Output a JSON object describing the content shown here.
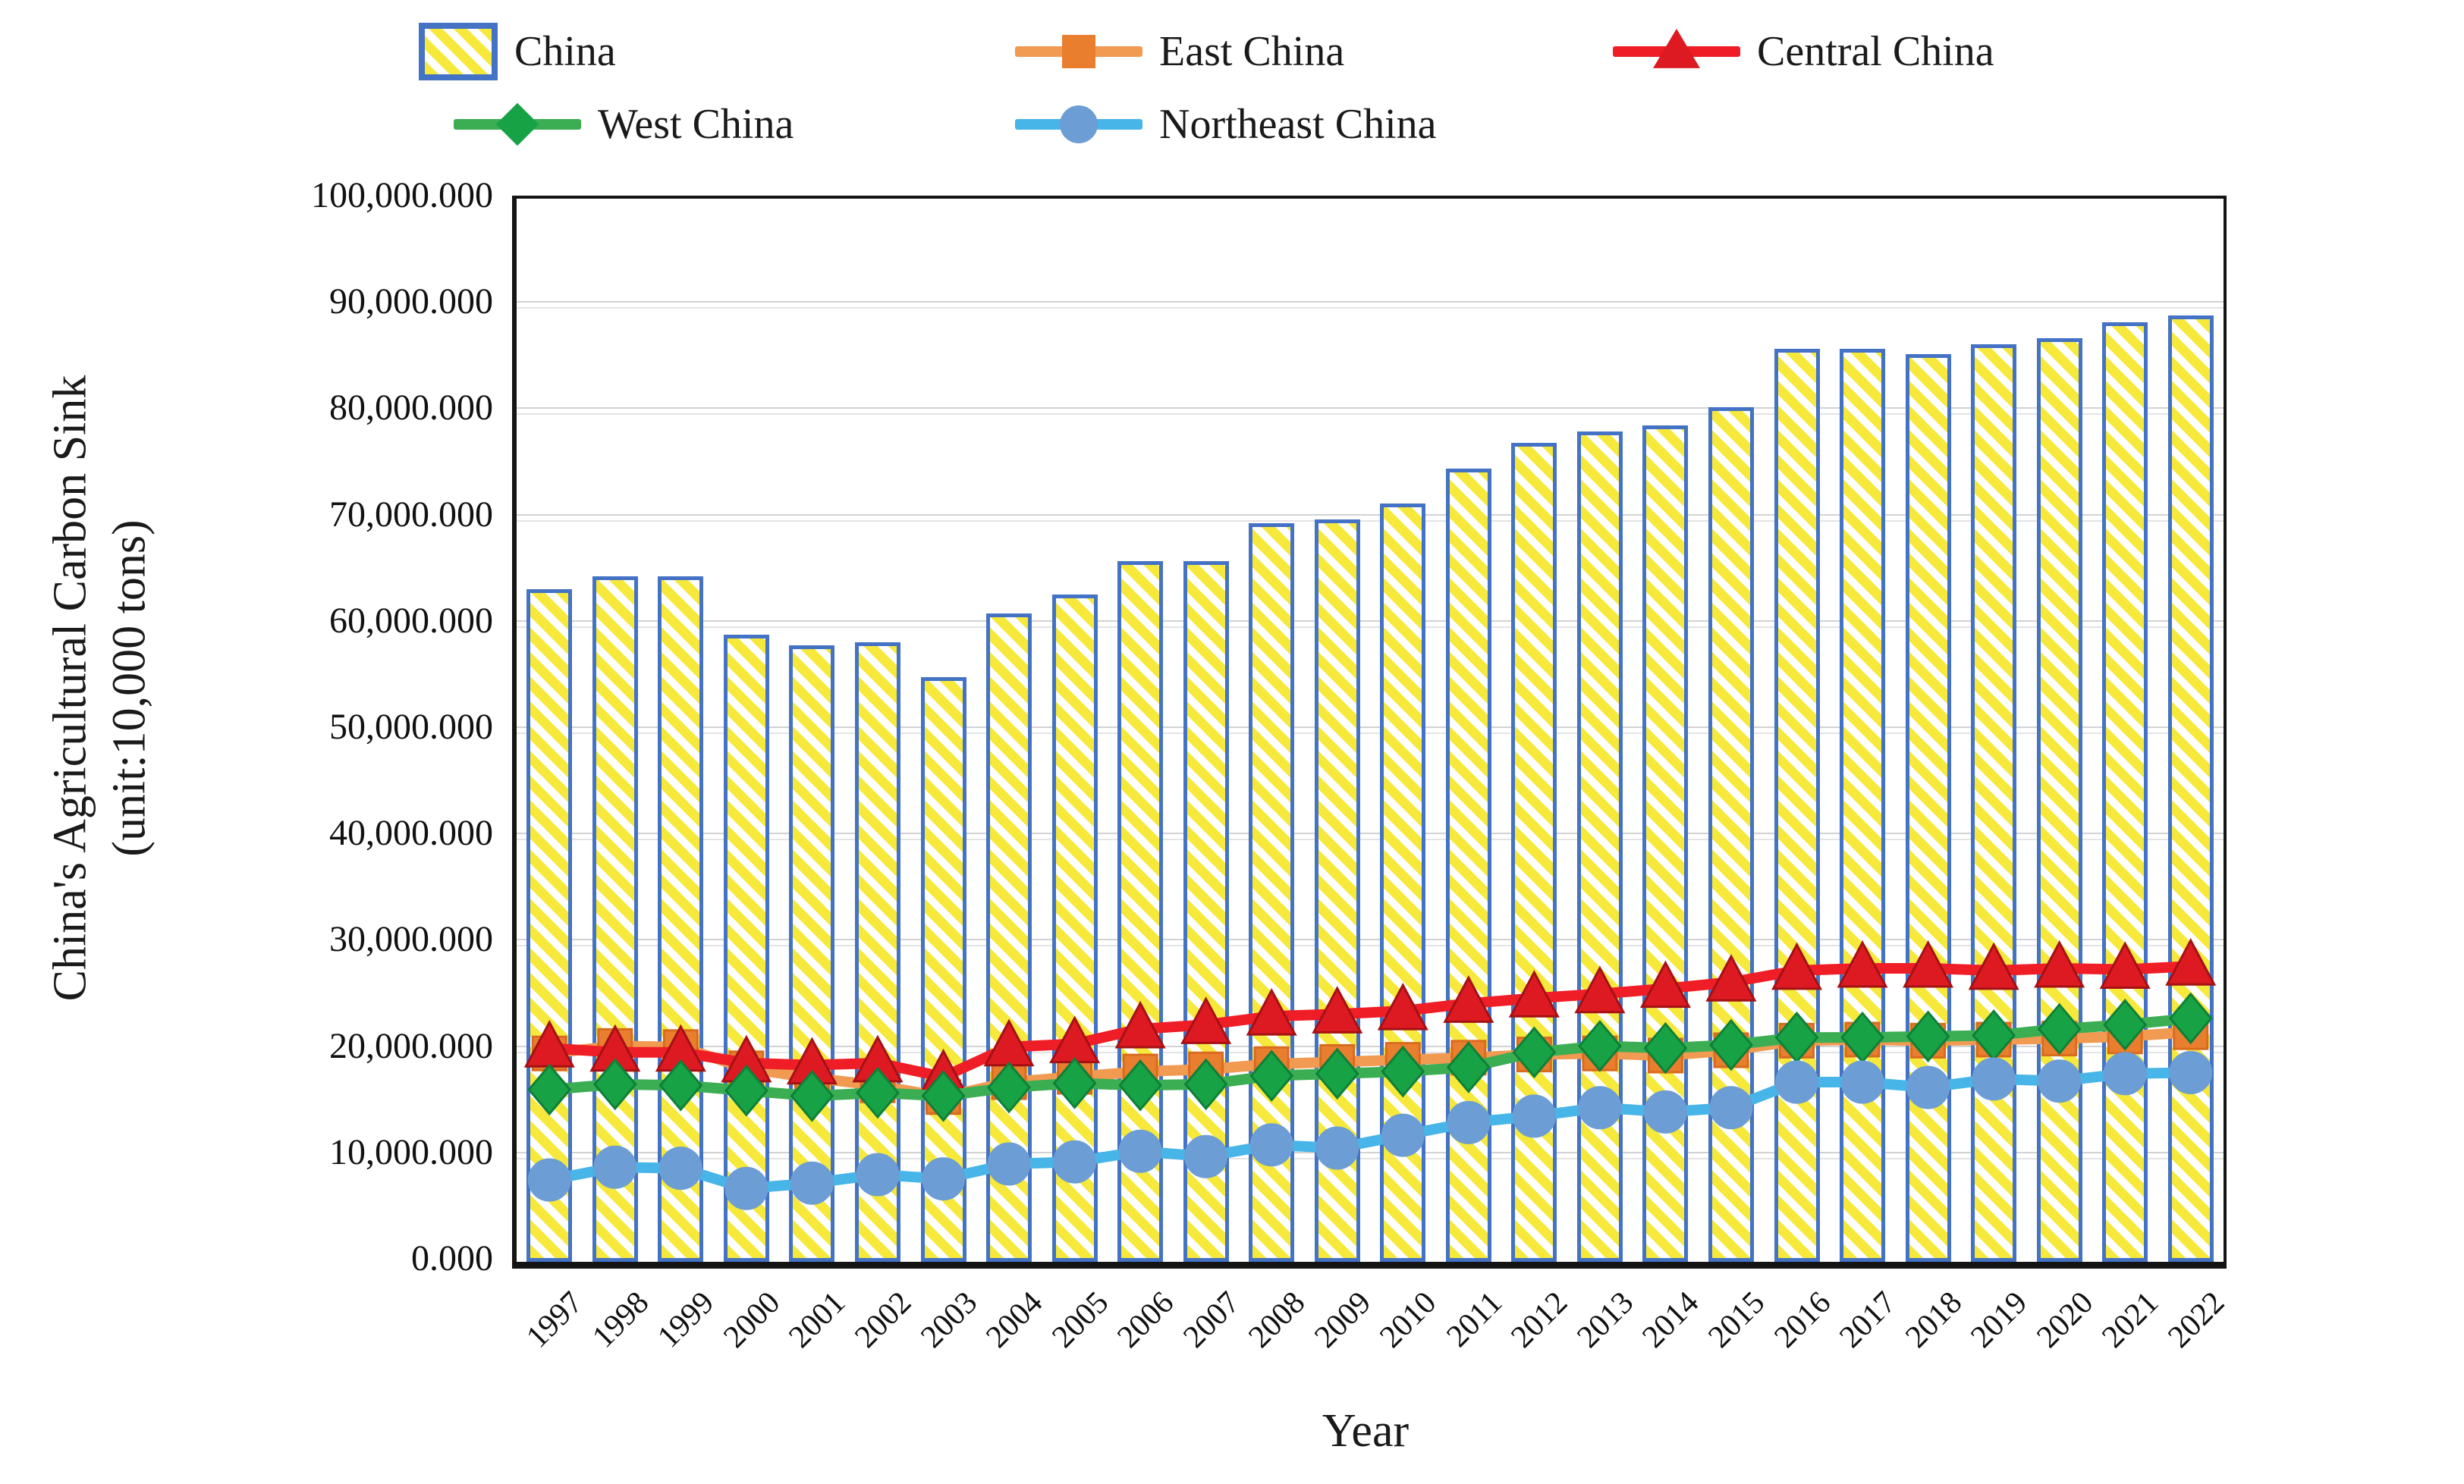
{
  "chart_data": {
    "type": "bar",
    "title": "",
    "xlabel": "Year",
    "ylabel_line1": "China's Agricultural Carbon Sink",
    "ylabel_line2": "(unit:10,000 tons)",
    "ylim": [
      0,
      100000
    ],
    "y_tick_step": 10000,
    "y_tick_labels": [
      "100,000.000",
      "90,000.000",
      "80,000.000",
      "70,000.000",
      "60,000.000",
      "50,000.000",
      "40,000.000",
      "30,000.000",
      "20,000.000",
      "10,000.000",
      "0.000"
    ],
    "grid": true,
    "legend_position": "top",
    "categories": [
      "1997",
      "1998",
      "1999",
      "2000",
      "2001",
      "2002",
      "2003",
      "2004",
      "2005",
      "2006",
      "2007",
      "2008",
      "2009",
      "2010",
      "2011",
      "2012",
      "2013",
      "2014",
      "2015",
      "2016",
      "2017",
      "2018",
      "2019",
      "2020",
      "2021",
      "2022"
    ],
    "series": [
      {
        "name": "China",
        "type": "bar",
        "border_color": "#4472C4",
        "hatch_color": "#F6E93B",
        "values": [
          63300,
          64500,
          64500,
          59000,
          58000,
          58300,
          55000,
          61000,
          62800,
          65900,
          65900,
          69500,
          69800,
          71300,
          74600,
          77000,
          78100,
          78700,
          80400,
          85900,
          85900,
          85400,
          86300,
          86900,
          88400,
          89000
        ]
      },
      {
        "name": "East China",
        "type": "line",
        "marker": "square",
        "line_color": "#F09A52",
        "marker_color": "#E87E2E",
        "marker_edge": "#D96B1F",
        "values": [
          19600,
          20300,
          20200,
          18200,
          17300,
          16600,
          15500,
          16900,
          17400,
          17900,
          18100,
          18600,
          18800,
          19000,
          19200,
          19500,
          19600,
          19400,
          19900,
          20800,
          20900,
          20800,
          20900,
          21000,
          21200,
          21600
        ]
      },
      {
        "name": "Central China",
        "type": "line",
        "marker": "triangle",
        "line_color": "#EF1D25",
        "marker_color": "#DD1A21",
        "marker_edge": "#A41115",
        "values": [
          20100,
          19700,
          19700,
          18700,
          18500,
          18700,
          17400,
          20200,
          20500,
          21900,
          22300,
          23100,
          23300,
          23600,
          24300,
          24800,
          25200,
          25700,
          26300,
          27400,
          27600,
          27600,
          27400,
          27600,
          27500,
          27800
        ]
      },
      {
        "name": "West China",
        "type": "line",
        "marker": "diamond",
        "line_color": "#3BAD52",
        "marker_color": "#18A246",
        "marker_edge": "#0F8038",
        "values": [
          16200,
          16700,
          16600,
          16100,
          15600,
          15900,
          15600,
          16400,
          16800,
          16600,
          16700,
          17500,
          17700,
          17900,
          18300,
          19700,
          20300,
          20100,
          20400,
          21100,
          21100,
          21200,
          21300,
          21900,
          22300,
          22900
        ]
      },
      {
        "name": "Northeast China",
        "type": "line",
        "marker": "circle",
        "line_color": "#47B5E8",
        "marker_color": "#6C9DD4",
        "marker_edge": "#6C9DD4",
        "values": [
          7700,
          8900,
          8800,
          6900,
          7400,
          8200,
          7800,
          9200,
          9400,
          10400,
          9900,
          11000,
          10700,
          11900,
          13100,
          13700,
          14500,
          14100,
          14500,
          16900,
          16900,
          16400,
          17200,
          17000,
          17700,
          17800
        ]
      }
    ]
  }
}
